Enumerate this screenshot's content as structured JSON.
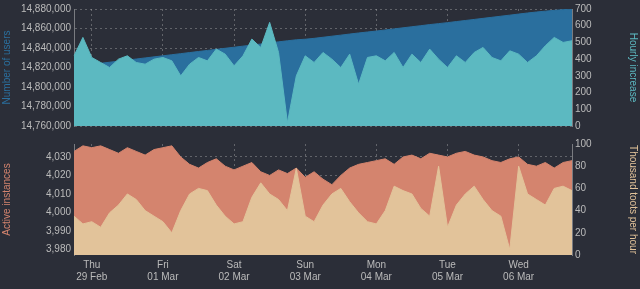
{
  "chart_data": [
    {
      "type": "area",
      "categories": [
        null,
        null,
        "Thu 29 Feb",
        null,
        null,
        null,
        null,
        null,
        null,
        null,
        "Fri 01 Mar",
        null,
        null,
        null,
        null,
        null,
        null,
        null,
        "Sat 02 Mar",
        null,
        null,
        null,
        null,
        null,
        null,
        null,
        "Sun 03 Mar",
        null,
        null,
        null,
        null,
        null,
        null,
        null,
        "Mon 04 Mar",
        null,
        null,
        null,
        null,
        null,
        null,
        null,
        "Tue 05 Mar",
        null,
        null,
        null,
        null,
        null,
        null,
        null,
        "Wed 06 Mar",
        null,
        null,
        null,
        null,
        null,
        null
      ],
      "series": [
        {
          "name": "Hourly increase",
          "color": "#5cb9c1",
          "axis": "y2",
          "values": [
            420,
            530,
            410,
            380,
            350,
            400,
            420,
            380,
            370,
            400,
            410,
            390,
            300,
            370,
            410,
            390,
            460,
            430,
            360,
            420,
            520,
            470,
            620,
            440,
            20,
            300,
            420,
            380,
            440,
            400,
            350,
            430,
            250,
            410,
            420,
            390,
            440,
            350,
            430,
            380,
            460,
            400,
            350,
            420,
            380,
            440,
            470,
            410,
            390,
            450,
            430,
            380,
            420,
            480,
            530,
            500,
            510
          ]
        },
        {
          "name": "Number of users",
          "color": "#2a6f9e",
          "values": [
            14821000,
            14822100,
            14823200,
            14824300,
            14825400,
            14826500,
            14827600,
            14828700,
            14829800,
            14830900,
            14832000,
            14833100,
            14834200,
            14835300,
            14836400,
            14837500,
            14838600,
            14839700,
            14840800,
            14841900,
            14843000,
            14844100,
            14845200,
            14846300,
            14847400,
            14848400,
            14849000,
            14849900,
            14851000,
            14852100,
            14853200,
            14854300,
            14855400,
            14856400,
            14857400,
            14858500,
            14859600,
            14860700,
            14861800,
            14862900,
            14864000,
            14865000,
            14866000,
            14867100,
            14868200,
            14869300,
            14870400,
            14871500,
            14872600,
            14873700,
            14874800,
            14875900,
            14876900,
            14877800,
            14878600,
            14879300,
            14880000
          ]
        }
      ],
      "ylim": [
        14760000,
        14880000
      ],
      "yticks": [
        {
          "value": 14760000,
          "label": "14,760,000"
        },
        {
          "value": 14780000,
          "label": "14,780,000"
        },
        {
          "value": 14800000,
          "label": "14,800,000"
        },
        {
          "value": 14820000,
          "label": "14,820,000"
        },
        {
          "value": 14840000,
          "label": "14,840,000"
        },
        {
          "value": 14860000,
          "label": "14,860,000"
        },
        {
          "value": 14880000,
          "label": "14,880,000"
        }
      ],
      "y2lim": [
        0,
        700
      ],
      "y2ticks": [
        0,
        100,
        200,
        300,
        400,
        500,
        600,
        700
      ],
      "grid": true,
      "tick_labels": "y"
    },
    {
      "type": "area",
      "categories": [
        null,
        null,
        "Thu 29 Feb",
        null,
        null,
        null,
        null,
        null,
        null,
        null,
        "Fri 01 Mar",
        null,
        null,
        null,
        null,
        null,
        null,
        null,
        "Sat 02 Mar",
        null,
        null,
        null,
        null,
        null,
        null,
        null,
        "Sun 03 Mar",
        null,
        null,
        null,
        null,
        null,
        null,
        null,
        "Mon 04 Mar",
        null,
        null,
        null,
        null,
        null,
        null,
        null,
        "Tue 05 Mar",
        null,
        null,
        null,
        null,
        null,
        null,
        null,
        "Wed 06 Mar",
        null,
        null,
        null,
        null,
        null,
        null
      ],
      "series": [
        {
          "name": "Thousand toots per hour",
          "color": "#e2c39a",
          "axis": "y2",
          "values": [
            35,
            28,
            30,
            25,
            38,
            45,
            55,
            50,
            40,
            35,
            30,
            20,
            40,
            55,
            60,
            58,
            45,
            35,
            28,
            30,
            52,
            65,
            55,
            50,
            40,
            78,
            35,
            30,
            45,
            55,
            60,
            48,
            38,
            30,
            28,
            40,
            62,
            58,
            55,
            42,
            35,
            80,
            25,
            45,
            55,
            62,
            50,
            40,
            35,
            5,
            80,
            55,
            50,
            45,
            60,
            62,
            58
          ]
        },
        {
          "name": "Active instances",
          "color": "#d4846e",
          "values": [
            4033,
            4036,
            4035,
            4036,
            4034,
            4032,
            4035,
            4033,
            4031,
            4034,
            4035,
            4036,
            4030,
            4026,
            4024,
            4027,
            4029,
            4025,
            4023,
            4025,
            4027,
            4022,
            4020,
            4023,
            4021,
            4024,
            4019,
            4022,
            4018,
            4015,
            4020,
            4024,
            4026,
            4027,
            4028,
            4029,
            4026,
            4030,
            4031,
            4029,
            4032,
            4031,
            4030,
            4032,
            4033,
            4031,
            4030,
            4028,
            4027,
            4029,
            4030,
            4026,
            4025,
            4027,
            4024,
            4027,
            4028
          ]
        }
      ],
      "ylim": [
        3977,
        4037
      ],
      "yticks": [
        {
          "value": 3980,
          "label": "3,980"
        },
        {
          "value": 3990,
          "label": "3,990"
        },
        {
          "value": 4000,
          "label": "4,000"
        },
        {
          "value": 4010,
          "label": "4,010"
        },
        {
          "value": 4020,
          "label": "4,020"
        },
        {
          "value": 4030,
          "label": "4,030"
        }
      ],
      "y2lim": [
        0,
        100
      ],
      "y2ticks": [
        0,
        20,
        40,
        60,
        80,
        100
      ],
      "grid": true
    }
  ]
}
